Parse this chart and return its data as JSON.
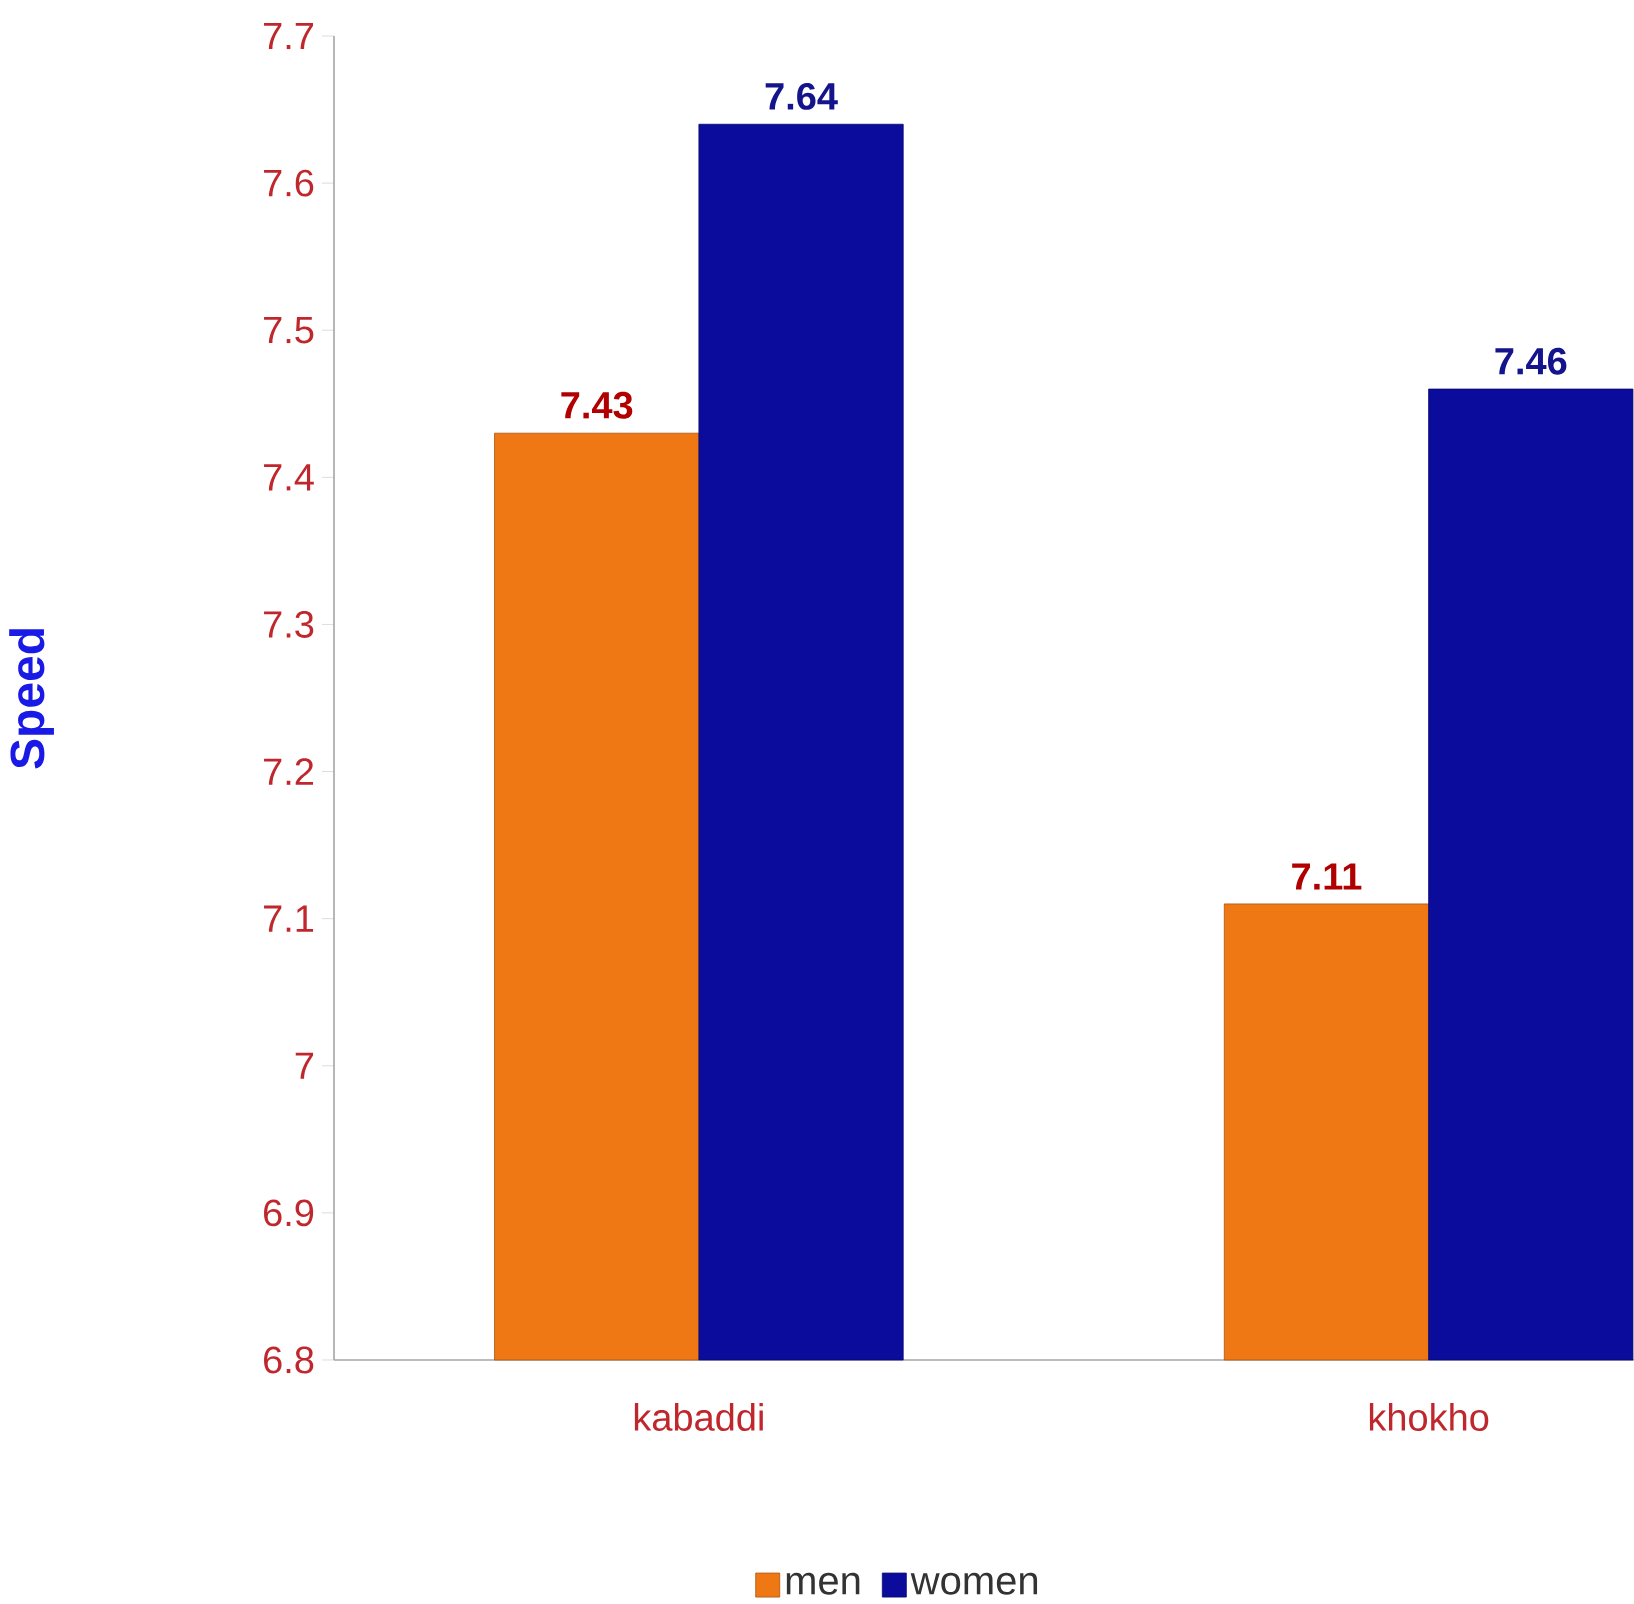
{
  "chart_data": {
    "type": "bar",
    "ylabel": "Speed",
    "categories": [
      "kabaddi",
      "khokho"
    ],
    "series": [
      {
        "name": "men",
        "color": "#f07814",
        "values": [
          7.43,
          7.11
        ]
      },
      {
        "name": "women",
        "color": "#0c0c9c",
        "values": [
          7.64,
          7.46
        ]
      }
    ],
    "ylim": [
      6.8,
      7.7
    ],
    "yticks": [
      6.8,
      6.9,
      7,
      7.1,
      7.2,
      7.3,
      7.4,
      7.5,
      7.6,
      7.7
    ],
    "data_labels": true,
    "legend": "bottom",
    "grid": false
  }
}
